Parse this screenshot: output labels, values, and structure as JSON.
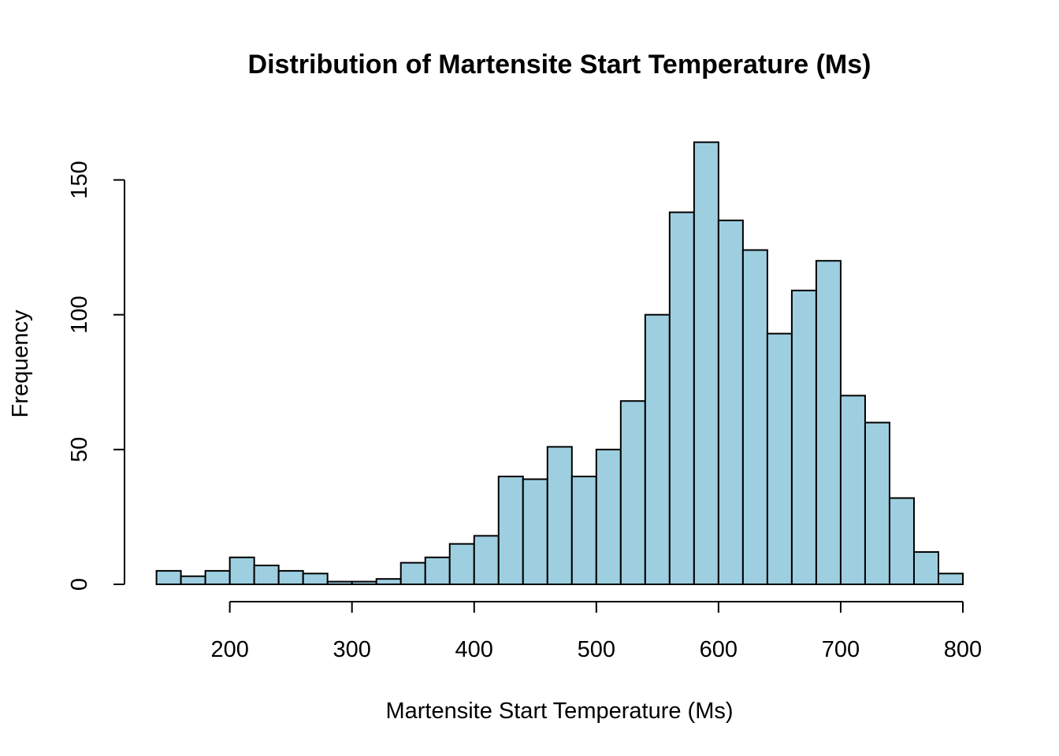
{
  "chart_data": {
    "type": "bar",
    "title": "Distribution of Martensite Start Temperature (Ms)",
    "xlabel": "Martensite Start Temperature (Ms)",
    "ylabel": "Frequency",
    "bar_color": "#9ECFE0",
    "grid": false,
    "legend": "none",
    "xlim": [
      140,
      800
    ],
    "ylim": [
      0,
      165
    ],
    "x_ticks": [
      200,
      300,
      400,
      500,
      600,
      700,
      800
    ],
    "x_tick_labels": [
      "200",
      "300",
      "400",
      "500",
      "600",
      "700",
      "800"
    ],
    "y_ticks": [
      0,
      50,
      100,
      150
    ],
    "y_tick_labels": [
      "0",
      "50",
      "100",
      "150"
    ],
    "bin_width": 20,
    "bin_starts": [
      140,
      160,
      180,
      200,
      220,
      240,
      260,
      280,
      300,
      320,
      340,
      360,
      380,
      400,
      420,
      440,
      460,
      480,
      500,
      520,
      540,
      560,
      580,
      600,
      620,
      640,
      660,
      680,
      700,
      720,
      740,
      760,
      780
    ],
    "values": [
      5,
      3,
      5,
      10,
      7,
      5,
      4,
      1,
      1,
      2,
      8,
      10,
      15,
      18,
      40,
      39,
      51,
      40,
      50,
      68,
      100,
      138,
      164,
      135,
      124,
      93,
      109,
      120,
      70,
      60,
      32,
      12,
      4
    ]
  }
}
